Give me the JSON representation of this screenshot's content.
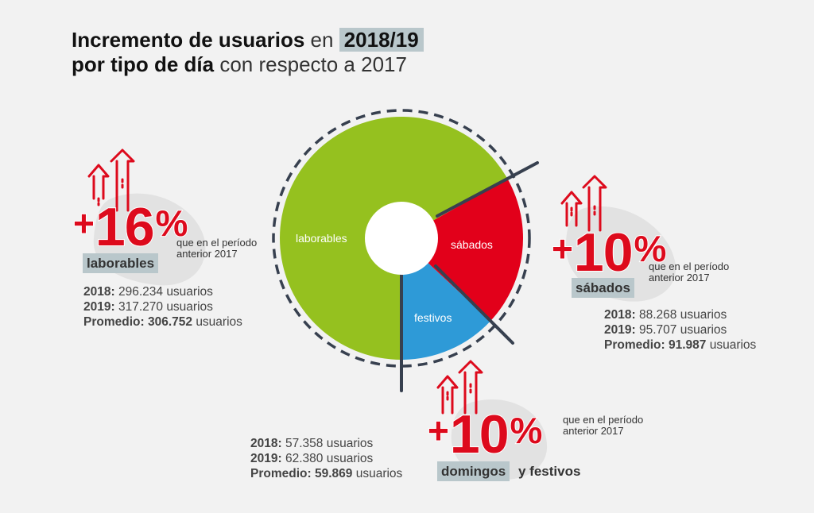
{
  "title": {
    "line1_bold": "Incremento de usuarios",
    "line1_light": "en",
    "line1_highlight": "2018/19",
    "line2_bold": "por tipo de día",
    "line2_light": "con respecto a 2017"
  },
  "chart_data": {
    "type": "pie",
    "slices": [
      {
        "label": "laborables",
        "value": 306752,
        "color": "#95c11f"
      },
      {
        "label": "sábados",
        "value": 91987,
        "color": "#e2001a"
      },
      {
        "label": "festivos",
        "value": 59869,
        "color": "#2e9ad7"
      }
    ]
  },
  "common": {
    "note_line1": "que en el período",
    "note_line2": "anterior 2017",
    "plus": "+",
    "percent": "%",
    "label_2018": "2018:",
    "label_2019": "2019:",
    "label_avg": "Promedio:",
    "unit": "usuarios"
  },
  "laborables": {
    "increase": "16",
    "tag": "laborables",
    "v2018": "296.234",
    "v2019": "317.270",
    "avg": "306.752"
  },
  "sabados": {
    "increase": "10",
    "tag": "sábados",
    "v2018": "88.268",
    "v2019": "95.707",
    "avg": "91.987"
  },
  "festivos": {
    "increase": "10",
    "tag": "domingos",
    "tag_after": "y festivos",
    "v2018": "57.358",
    "v2019": "62.380",
    "avg": "59.869"
  },
  "colors": {
    "accent_red": "#dd0a1c",
    "highlight": "#b9c7cb",
    "blob": "#e2e2e2",
    "divider": "#37404f"
  }
}
